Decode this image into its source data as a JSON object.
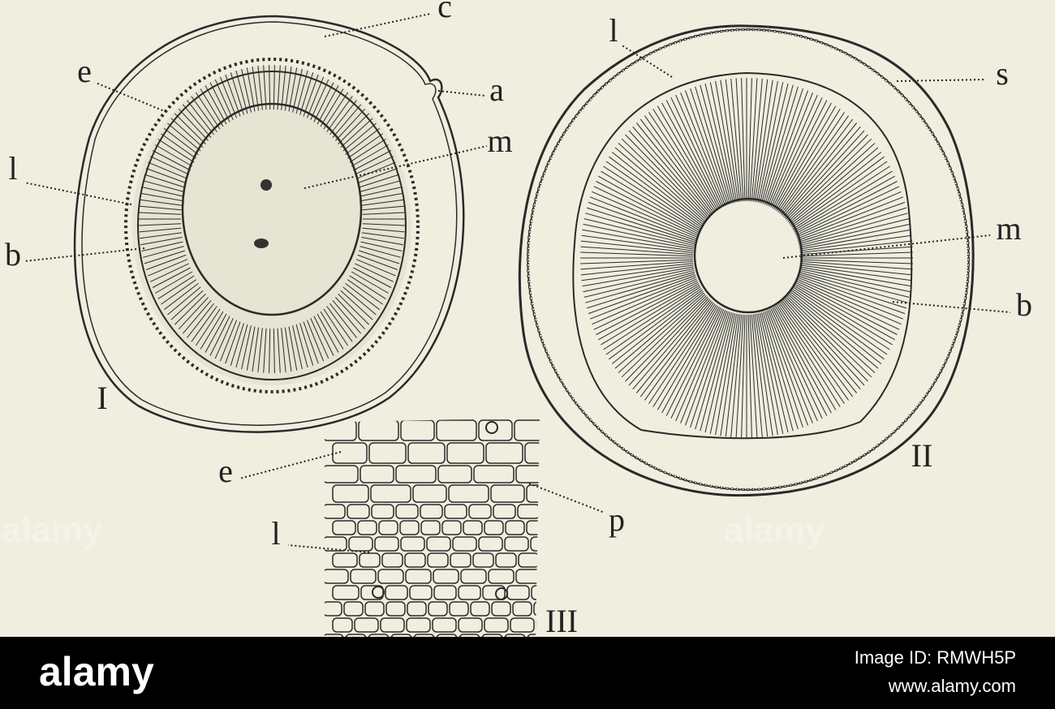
{
  "figures": [
    {
      "numeral": "I",
      "labels": [
        "c",
        "a",
        "e",
        "m",
        "l",
        "b"
      ]
    },
    {
      "numeral": "II",
      "labels": [
        "l",
        "s",
        "m",
        "b"
      ]
    },
    {
      "numeral": "III",
      "labels": [
        "e",
        "p",
        "l"
      ]
    }
  ],
  "watermarks": [
    "alamy",
    "alamy"
  ],
  "footer": {
    "logo": "alamy",
    "image_id": "Image ID: RMWH5P",
    "url": "www.alamy.com"
  }
}
